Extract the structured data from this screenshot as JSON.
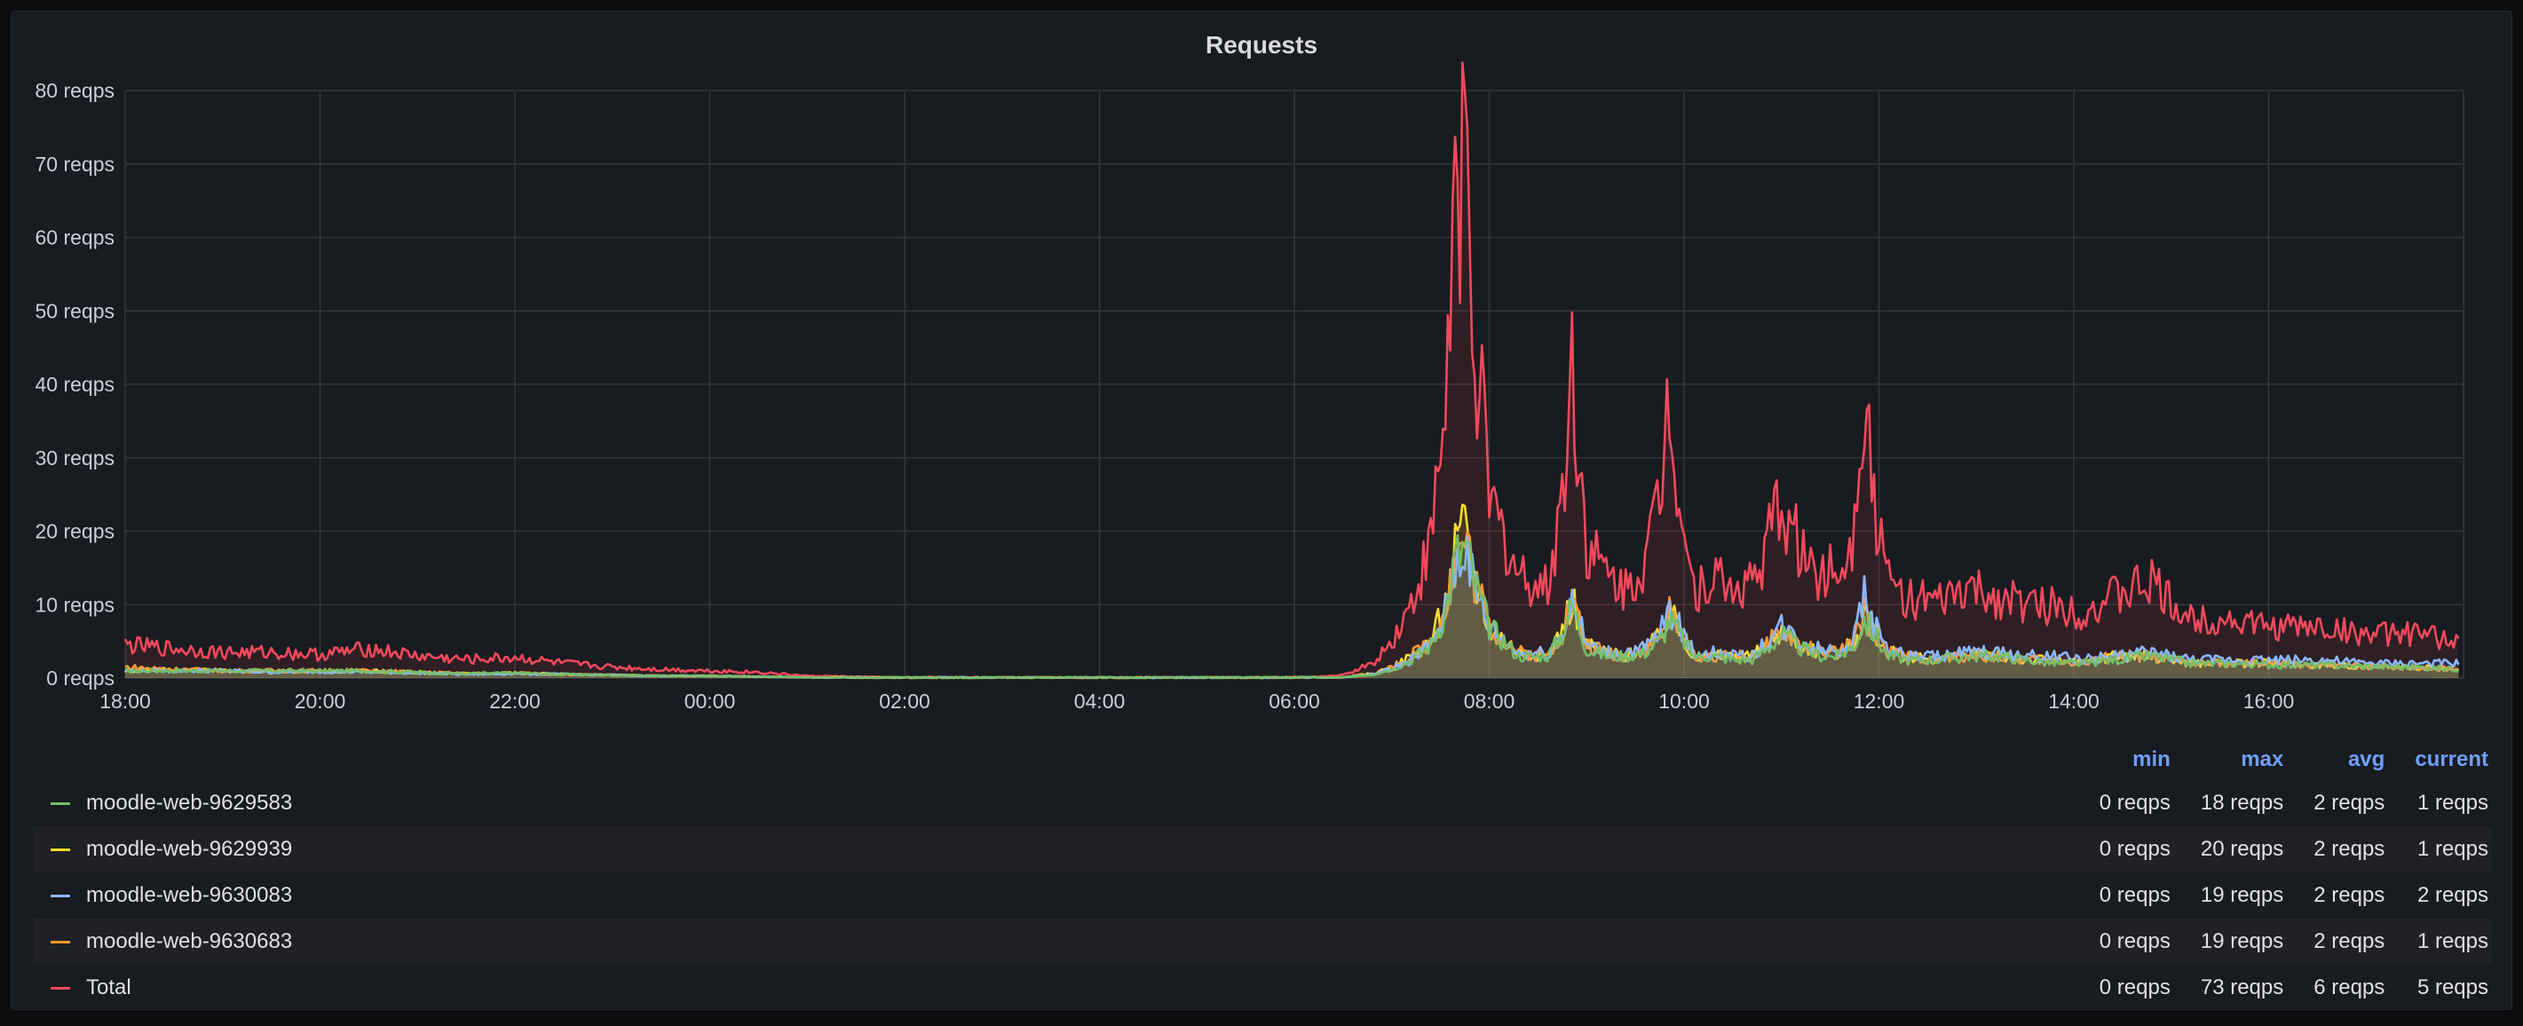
{
  "chart_data": {
    "type": "line",
    "title": "Requests",
    "y_unit": "reqps",
    "ylim": [
      0,
      80
    ],
    "y_ticks": [
      "0 reqps",
      "10 reqps",
      "20 reqps",
      "30 reqps",
      "40 reqps",
      "50 reqps",
      "60 reqps",
      "70 reqps",
      "80 reqps"
    ],
    "x_ticks": [
      "18:00",
      "20:00",
      "22:00",
      "00:00",
      "02:00",
      "04:00",
      "06:00",
      "08:00",
      "10:00",
      "12:00",
      "14:00",
      "16:00"
    ],
    "grid": true,
    "legend_placement": "bottom",
    "legend_columns": [
      "min",
      "max",
      "avg",
      "current"
    ],
    "x_hours": [
      0,
      0.5,
      1,
      1.5,
      2,
      2.5,
      3,
      3.5,
      4,
      4.5,
      5,
      5.5,
      6,
      6.5,
      7,
      7.5,
      8,
      8.5,
      9,
      9.5,
      10,
      10.5,
      11,
      11.5,
      12,
      12.5,
      12.8,
      13.0,
      13.2,
      13.4,
      13.55,
      13.65,
      13.75,
      13.85,
      14.0,
      14.3,
      14.6,
      14.75,
      14.85,
      15.0,
      15.2,
      15.4,
      15.6,
      15.75,
      15.85,
      15.95,
      16.1,
      16.3,
      16.5,
      16.7,
      16.85,
      17.0,
      17.2,
      17.4,
      17.6,
      17.75,
      17.85,
      17.95,
      18.1,
      18.3,
      18.6,
      18.9,
      19.2,
      19.5,
      19.8,
      20.1,
      20.4,
      20.8,
      21.0,
      21.2,
      21.6,
      22.0,
      22.5,
      23.0,
      23.5,
      23.95
    ],
    "series": [
      {
        "name": "moodle-web-9629583",
        "color": "#73bf69",
        "values": [
          1,
          1,
          1,
          1,
          1,
          1,
          0.8,
          0.6,
          0.7,
          0.5,
          0.4,
          0.3,
          0.3,
          0.2,
          0.1,
          0,
          0,
          0,
          0,
          0,
          0,
          0,
          0,
          0,
          0,
          0.1,
          0.5,
          1.2,
          2.5,
          4.5,
          9,
          16,
          18,
          13,
          7,
          3,
          3,
          6,
          10,
          4,
          3,
          3,
          3.5,
          5,
          8,
          6,
          3,
          3,
          2.5,
          2.5,
          4,
          6,
          4,
          3,
          3,
          4.5,
          8,
          6,
          3,
          2.5,
          2.5,
          3,
          3,
          2.5,
          2,
          2,
          2.5,
          3,
          2.5,
          2,
          2,
          1.8,
          1.8,
          1.6,
          1.5,
          1.2
        ]
      },
      {
        "name": "moodle-web-9629939",
        "color": "#fade2a",
        "values": [
          1,
          1.2,
          1,
          1,
          0.9,
          1,
          0.8,
          0.6,
          0.7,
          0.5,
          0.4,
          0.3,
          0.3,
          0.2,
          0.1,
          0,
          0,
          0,
          0,
          0,
          0,
          0,
          0,
          0,
          0,
          0.1,
          0.6,
          1.4,
          3,
          5,
          10,
          17,
          20,
          14,
          7,
          3.5,
          3,
          6.5,
          11,
          4.5,
          3.5,
          3,
          4,
          5.5,
          9,
          6.5,
          3,
          3,
          3,
          3,
          4.5,
          6.5,
          4.5,
          3.5,
          3.5,
          5,
          9,
          6.5,
          3.5,
          3,
          2.5,
          3,
          3,
          2.5,
          2.5,
          2,
          3,
          3,
          2.5,
          2,
          2,
          2,
          1.8,
          1.6,
          1.5,
          1.2
        ]
      },
      {
        "name": "moodle-web-9630083",
        "color": "#8ab8ff",
        "values": [
          1,
          1,
          1,
          0.8,
          0.9,
          0.8,
          0.7,
          0.5,
          0.6,
          0.5,
          0.4,
          0.3,
          0.3,
          0.2,
          0.1,
          0,
          0,
          0,
          0,
          0,
          0,
          0,
          0,
          0,
          0,
          0.1,
          0.5,
          1.3,
          2.5,
          4.5,
          9,
          15,
          19,
          12,
          7,
          3.5,
          3.5,
          6,
          11,
          4.5,
          3.5,
          3.5,
          4,
          6,
          9.5,
          7,
          3.5,
          3.5,
          3,
          3,
          5,
          7,
          5,
          4,
          4,
          5.5,
          12,
          7,
          4,
          3,
          3,
          3.5,
          3.5,
          3,
          3,
          2.5,
          3,
          3.5,
          3,
          2.5,
          2.5,
          2.5,
          2.5,
          2,
          2,
          2
        ]
      },
      {
        "name": "moodle-web-9630683",
        "color": "#ff9830",
        "values": [
          1.5,
          1.2,
          1,
          1,
          1,
          1,
          0.8,
          0.6,
          0.7,
          0.5,
          0.4,
          0.3,
          0.3,
          0.2,
          0.1,
          0,
          0,
          0,
          0,
          0,
          0,
          0,
          0,
          0,
          0,
          0.1,
          0.6,
          1.4,
          3,
          5,
          10,
          16,
          19,
          14,
          7,
          3.5,
          3,
          6.5,
          10.5,
          4.5,
          3.5,
          3,
          4,
          5.5,
          9,
          6.5,
          3,
          3,
          3,
          3,
          4.5,
          6.5,
          4.5,
          3.5,
          3.5,
          5,
          9,
          6.5,
          3.5,
          3,
          2.5,
          3,
          3,
          2.5,
          2.5,
          2,
          3,
          3,
          2.5,
          2,
          2,
          2,
          1.8,
          1.6,
          1.5,
          1.2
        ]
      },
      {
        "name": "Total",
        "color": "#f2495c",
        "values": [
          4.5,
          4,
          3.5,
          3.5,
          3.2,
          4,
          3,
          2.5,
          2.8,
          2,
          1.5,
          1.2,
          1,
          0.8,
          0.3,
          0.2,
          0.1,
          0,
          0,
          0,
          0,
          0,
          0,
          0,
          0,
          0.4,
          2,
          5,
          10,
          18,
          37,
          66,
          73,
          48,
          24,
          14,
          12,
          25,
          42,
          18,
          14,
          12,
          16,
          24,
          41,
          25,
          12,
          14,
          12,
          13,
          18,
          24,
          17,
          14,
          15,
          21,
          43,
          24,
          13,
          11,
          10,
          12,
          11,
          10,
          10,
          9,
          11,
          13,
          10,
          8,
          8,
          7,
          7,
          6,
          6,
          5
        ]
      }
    ]
  },
  "legend_header": {
    "min": "min",
    "max": "max",
    "avg": "avg",
    "current": "current"
  },
  "legend": [
    {
      "name": "moodle-web-9629583",
      "color": "#73bf69",
      "min": "0 reqps",
      "max": "18 reqps",
      "avg": "2 reqps",
      "current": "1 reqps"
    },
    {
      "name": "moodle-web-9629939",
      "color": "#fade2a",
      "min": "0 reqps",
      "max": "20 reqps",
      "avg": "2 reqps",
      "current": "1 reqps"
    },
    {
      "name": "moodle-web-9630083",
      "color": "#8ab8ff",
      "min": "0 reqps",
      "max": "19 reqps",
      "avg": "2 reqps",
      "current": "2 reqps"
    },
    {
      "name": "moodle-web-9630683",
      "color": "#ff9830",
      "min": "0 reqps",
      "max": "19 reqps",
      "avg": "2 reqps",
      "current": "1 reqps"
    },
    {
      "name": "Total",
      "color": "#f2495c",
      "min": "0 reqps",
      "max": "73 reqps",
      "avg": "6 reqps",
      "current": "5 reqps"
    }
  ]
}
